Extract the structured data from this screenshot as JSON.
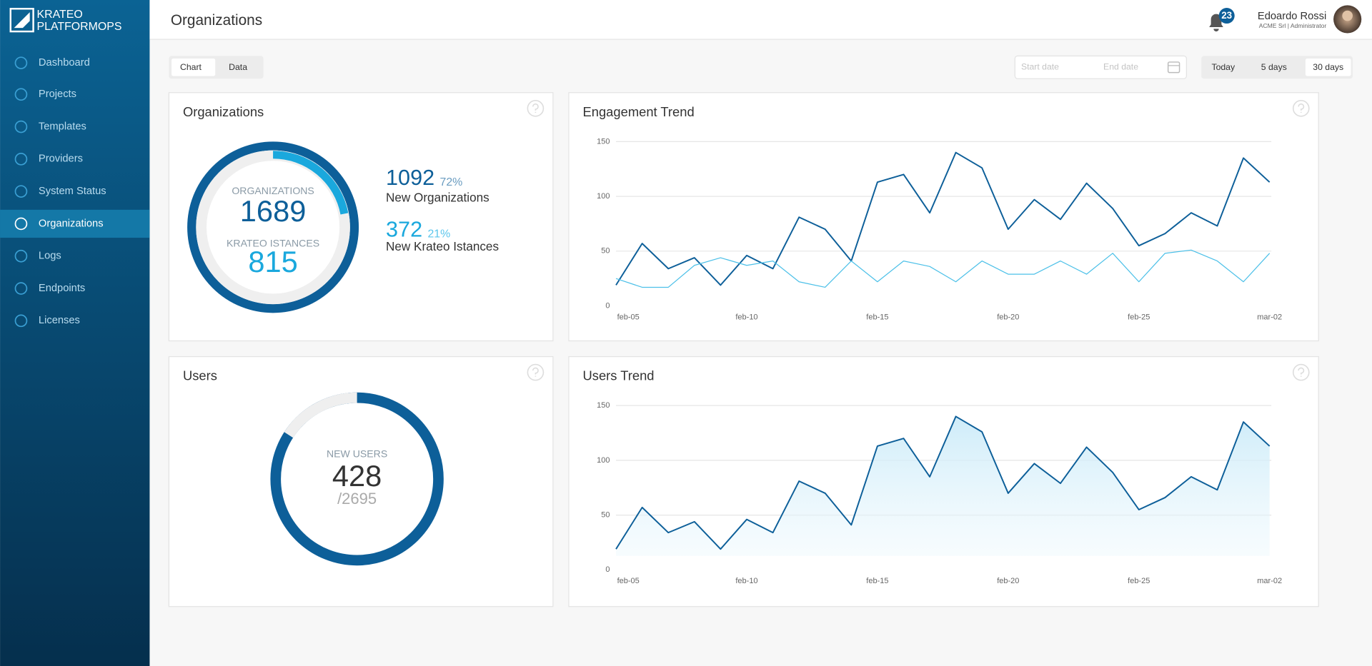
{
  "brand": {
    "line1": "KRATEO",
    "line2": "PLATFORMOPS"
  },
  "nav": {
    "items": [
      "Dashboard",
      "Projects",
      "Templates",
      "Providers",
      "System Status",
      "Organizations",
      "Logs",
      "Endpoints",
      "Licenses"
    ],
    "active_index": 5
  },
  "header": {
    "title": "Organizations",
    "notifications": 23,
    "user_name": "Edoardo Rossi",
    "user_role": "ACME Srl | Administrator"
  },
  "toolbar": {
    "view_tabs": [
      "Chart",
      "Data"
    ],
    "active_tab": 0,
    "start_placeholder": "Start date",
    "end_placeholder": "End date",
    "ranges": [
      "Today",
      "5 days",
      "30 days"
    ],
    "active_range": 2
  },
  "chart_data": [
    {
      "type": "donut_org",
      "title": "Organizations",
      "total_label": "ORGANIZATIONS",
      "total": 1689,
      "instances_label": "KRATEO ISTANCES",
      "instances": 815,
      "series": [
        {
          "name": "New Organizations",
          "value": 1092,
          "share_label": "72%",
          "color": "#0d5f99"
        },
        {
          "name": "New Krateo Istances",
          "value": 372,
          "share_label": "21%",
          "color": "#1aa8dd"
        }
      ]
    },
    {
      "type": "line",
      "title": "Engagement Trend",
      "categories": [
        "feb-05",
        null,
        null,
        null,
        null,
        "feb-10",
        null,
        null,
        null,
        null,
        "feb-15",
        null,
        null,
        null,
        null,
        "feb-20",
        null,
        null,
        null,
        null,
        "feb-25",
        null,
        null,
        null,
        null,
        "mar-02"
      ],
      "series": [
        {
          "color": "#0d5f99",
          "values": [
            19,
            57,
            34,
            44,
            19,
            46,
            34,
            81,
            70,
            41,
            113,
            120,
            85,
            140,
            126,
            70,
            97,
            79,
            112,
            89,
            55,
            66,
            85,
            73,
            135,
            113
          ]
        },
        {
          "color": "#4cc0e8",
          "values": [
            25,
            17,
            17,
            37,
            44,
            37,
            41,
            22,
            17,
            41,
            22,
            41,
            36,
            22,
            41,
            29,
            29,
            41,
            29,
            48,
            22,
            48,
            51,
            41,
            22,
            48
          ]
        }
      ],
      "ylim": [
        0,
        150
      ],
      "yticks": [
        0,
        50,
        100,
        150
      ],
      "grid": true
    },
    {
      "type": "donut_users",
      "title": "Users",
      "center_label": "NEW USERS",
      "value": 428,
      "total": 2695,
      "total_label": "/2695",
      "color": "#0d5f99"
    },
    {
      "type": "area",
      "title": "Users Trend",
      "categories": [
        "feb-05",
        null,
        null,
        null,
        null,
        "feb-10",
        null,
        null,
        null,
        null,
        "feb-15",
        null,
        null,
        null,
        null,
        "feb-20",
        null,
        null,
        null,
        null,
        "feb-25",
        null,
        null,
        null,
        null,
        "mar-02"
      ],
      "series": [
        {
          "color": "#0d5f99",
          "values": [
            19,
            57,
            34,
            44,
            19,
            46,
            34,
            81,
            70,
            41,
            113,
            120,
            85,
            140,
            126,
            70,
            97,
            79,
            112,
            89,
            55,
            66,
            85,
            73,
            135,
            113
          ]
        }
      ],
      "ylim": [
        0,
        150
      ],
      "yticks": [
        0,
        50,
        100,
        150
      ],
      "grid": true
    }
  ]
}
